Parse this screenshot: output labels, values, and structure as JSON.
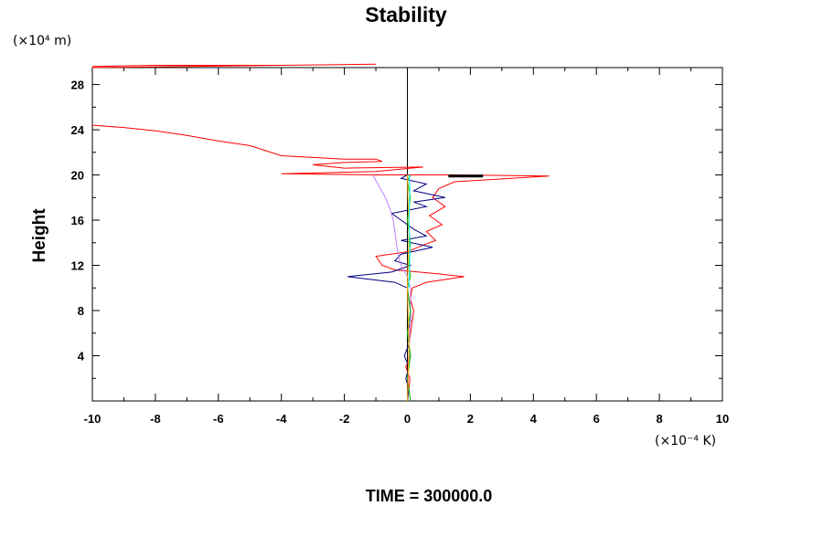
{
  "chart_data": {
    "type": "line",
    "title": "Stability",
    "xlabel": "",
    "ylabel": "Height",
    "x_unit": "(×10⁻⁴ K)",
    "y_unit": "(×10⁴ m)",
    "xlim": [
      -10,
      10
    ],
    "ylim": [
      0,
      29.5
    ],
    "x_ticks": [
      -10,
      -8,
      -6,
      -4,
      -2,
      0,
      2,
      4,
      6,
      8,
      10
    ],
    "y_ticks": [
      4,
      8,
      12,
      16,
      20,
      24,
      28
    ],
    "x_tick_labels": [
      "-10",
      "-8",
      "-6",
      "-4",
      "-2",
      "0",
      "2",
      "4",
      "6",
      "8",
      "10"
    ],
    "y_tick_labels": [
      "4",
      "8",
      "12",
      "16",
      "20",
      "24",
      "28"
    ],
    "grid": false,
    "legend": "none",
    "zero_line_x": 0,
    "footer": "TIME = 300000.0",
    "series": [
      {
        "color": "#ff0000",
        "points": [
          [
            0.0,
            0.0
          ],
          [
            0.05,
            1.0
          ],
          [
            0.08,
            2.0
          ],
          [
            -0.05,
            3.0
          ],
          [
            0.1,
            4.0
          ],
          [
            0.05,
            5.0
          ],
          [
            0.1,
            6.0
          ],
          [
            0.15,
            7.0
          ],
          [
            0.2,
            8.0
          ],
          [
            0.1,
            9.0
          ],
          [
            0.15,
            10.0
          ],
          [
            0.6,
            10.5
          ],
          [
            1.8,
            11.0
          ],
          [
            0.8,
            11.3
          ],
          [
            -0.4,
            11.6
          ],
          [
            -0.8,
            12.0
          ],
          [
            -1.0,
            12.8
          ],
          [
            0.0,
            13.2
          ],
          [
            0.5,
            13.8
          ],
          [
            0.9,
            14.2
          ],
          [
            0.6,
            15.0
          ],
          [
            1.1,
            15.6
          ],
          [
            0.7,
            16.4
          ],
          [
            1.2,
            17.2
          ],
          [
            0.8,
            18.0
          ],
          [
            1.0,
            18.8
          ],
          [
            1.5,
            19.4
          ],
          [
            4.5,
            19.9
          ],
          [
            1.5,
            20.0
          ],
          [
            -1.0,
            20.0
          ],
          [
            -4.0,
            20.1
          ],
          [
            -1.0,
            20.3
          ],
          [
            0.5,
            20.7
          ],
          [
            -2.0,
            20.6
          ],
          [
            -3.0,
            20.9
          ],
          [
            -2.0,
            21.1
          ],
          [
            -0.8,
            21.2
          ],
          [
            -1.0,
            21.4
          ],
          [
            -2.0,
            21.4
          ],
          [
            -4.0,
            21.7
          ],
          [
            -5.0,
            22.6
          ],
          [
            -6.0,
            23.0
          ],
          [
            -7.0,
            23.5
          ],
          [
            -8.0,
            23.9
          ],
          [
            -9.0,
            24.2
          ],
          [
            -10.0,
            24.4
          ]
        ]
      },
      {
        "color": "#ff0000",
        "points": [
          [
            -10.0,
            29.5
          ],
          [
            -7.0,
            29.6
          ],
          [
            -4.0,
            29.7
          ],
          [
            -1.0,
            29.8
          ],
          [
            -4.0,
            29.7
          ],
          [
            -8.0,
            29.7
          ],
          [
            -10.0,
            29.6
          ]
        ]
      },
      {
        "color": "#000080",
        "points": [
          [
            0.0,
            0.0
          ],
          [
            0.05,
            1.0
          ],
          [
            -0.05,
            2.0
          ],
          [
            0.05,
            3.0
          ],
          [
            -0.1,
            4.0
          ],
          [
            0.05,
            5.0
          ],
          [
            0.0,
            6.0
          ],
          [
            0.1,
            7.0
          ],
          [
            0.1,
            8.0
          ],
          [
            0.05,
            9.0
          ],
          [
            0.0,
            10.0
          ],
          [
            -0.4,
            10.5
          ],
          [
            -1.9,
            11.0
          ],
          [
            -0.5,
            11.4
          ],
          [
            0.1,
            12.0
          ],
          [
            -0.4,
            12.4
          ],
          [
            -0.2,
            13.0
          ],
          [
            0.8,
            13.6
          ],
          [
            -0.2,
            14.2
          ],
          [
            0.6,
            14.6
          ],
          [
            0.2,
            15.2
          ],
          [
            -0.1,
            15.8
          ],
          [
            -0.5,
            16.6
          ],
          [
            0.6,
            17.2
          ],
          [
            0.2,
            17.6
          ],
          [
            1.2,
            18.0
          ],
          [
            0.2,
            18.6
          ],
          [
            0.6,
            19.2
          ],
          [
            -0.2,
            19.7
          ],
          [
            0.0,
            20.0
          ]
        ]
      },
      {
        "color": "#c080ff",
        "points": [
          [
            -1.1,
            20.0
          ],
          [
            -0.9,
            19.0
          ],
          [
            -0.7,
            18.0
          ],
          [
            -0.55,
            17.0
          ],
          [
            -0.45,
            16.0
          ],
          [
            -0.4,
            15.0
          ],
          [
            -0.35,
            14.0
          ],
          [
            -0.3,
            13.0
          ],
          [
            -0.2,
            12.0
          ],
          [
            0.0,
            11.0
          ],
          [
            0.1,
            10.0
          ],
          [
            0.1,
            8.0
          ],
          [
            0.05,
            4.0
          ],
          [
            0.0,
            0.0
          ]
        ]
      },
      {
        "color": "#00c000",
        "points": [
          [
            0.1,
            0.0
          ],
          [
            0.0,
            2.0
          ],
          [
            0.1,
            4.0
          ],
          [
            0.0,
            6.0
          ],
          [
            0.1,
            8.0
          ],
          [
            0.0,
            10.0
          ],
          [
            0.1,
            11.0
          ],
          [
            0.05,
            12.0
          ],
          [
            0.1,
            14.0
          ],
          [
            0.0,
            16.0
          ],
          [
            0.1,
            18.0
          ],
          [
            0.0,
            19.5
          ],
          [
            0.1,
            20.0
          ]
        ]
      },
      {
        "color": "#ffa500",
        "points": [
          [
            0.0,
            0.0
          ],
          [
            0.05,
            5.0
          ],
          [
            0.0,
            10.0
          ],
          [
            0.05,
            15.0
          ],
          [
            0.0,
            20.0
          ]
        ]
      },
      {
        "color": "#00ffff",
        "points": [
          [
            0.05,
            10.0
          ],
          [
            0.08,
            13.0
          ],
          [
            0.05,
            16.0
          ],
          [
            0.08,
            19.0
          ],
          [
            0.05,
            20.0
          ]
        ]
      },
      {
        "color": "#000000",
        "points": [
          [
            1.3,
            19.9
          ],
          [
            2.4,
            19.9
          ]
        ]
      }
    ]
  }
}
